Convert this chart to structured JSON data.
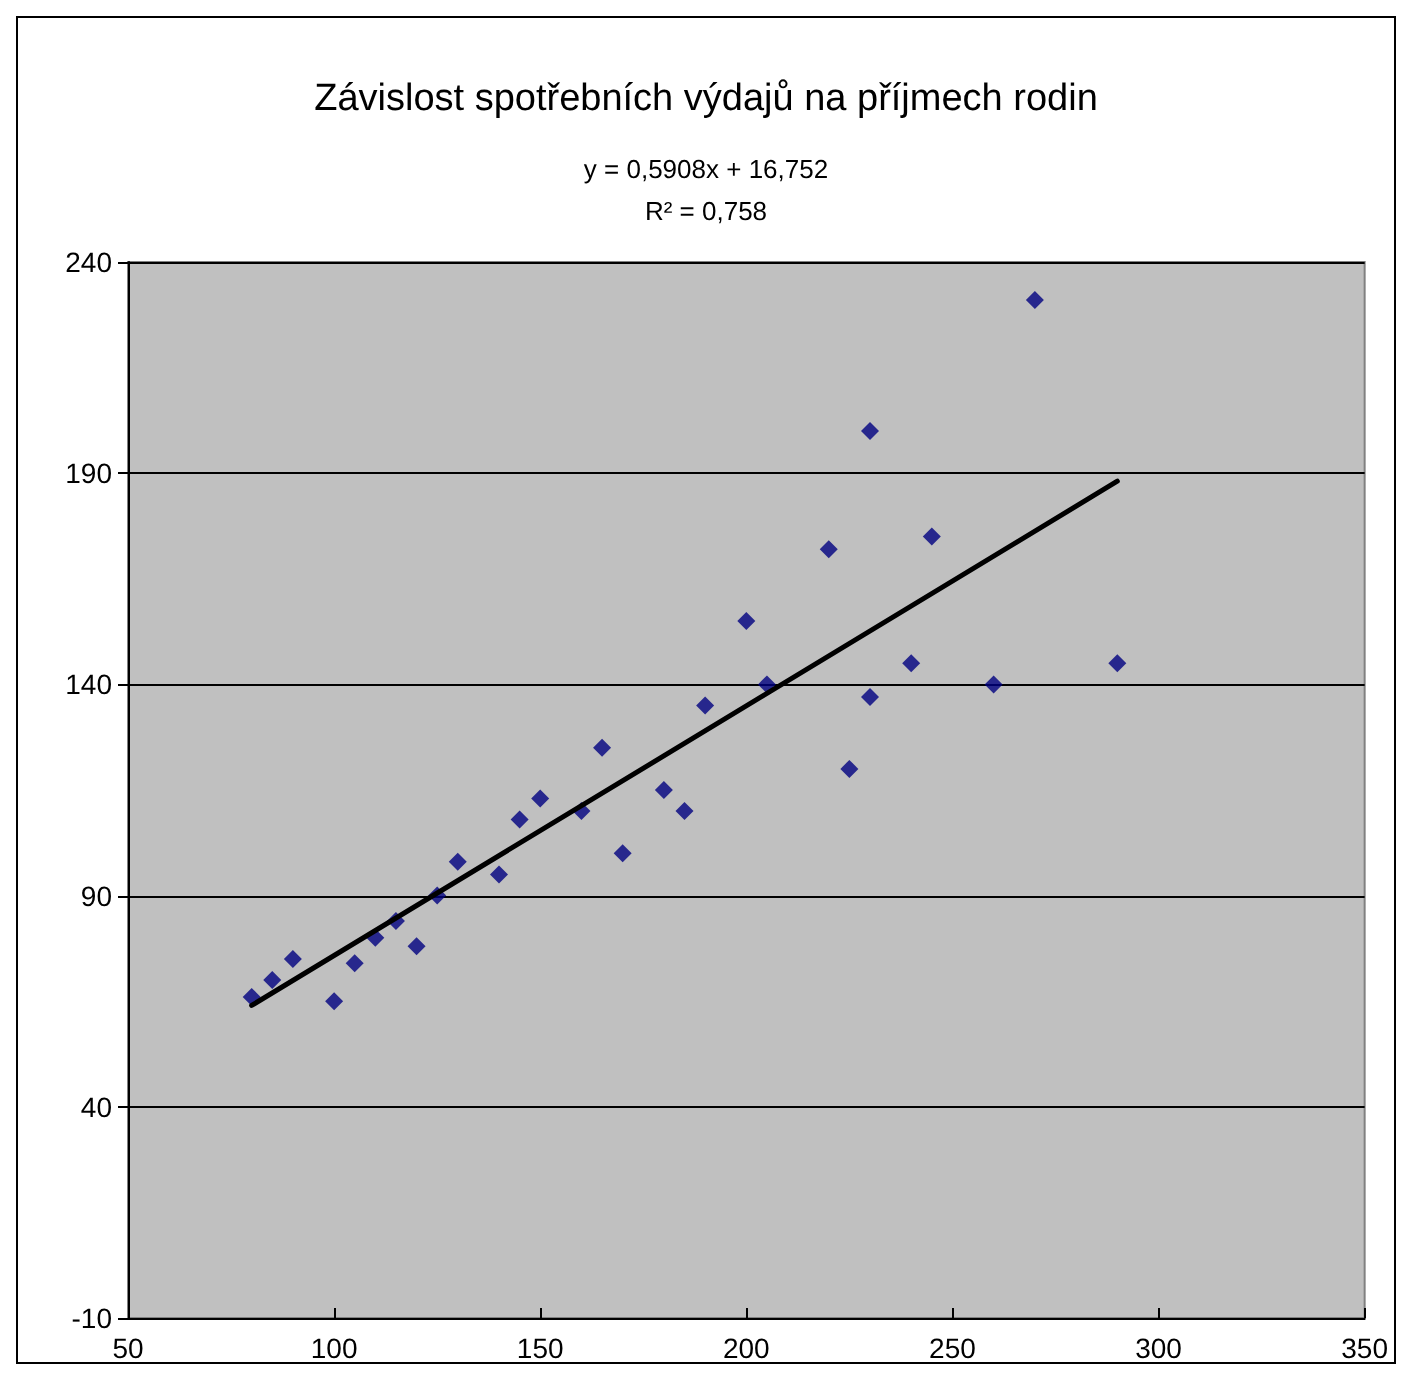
{
  "chart_data": {
    "type": "scatter",
    "title": "Závislost spotřebních výdajů na příjmech rodin",
    "annotations": [
      "y = 0,5908x + 16,752",
      "R² = 0,758"
    ],
    "x": [
      80,
      85,
      90,
      100,
      105,
      110,
      115,
      120,
      125,
      130,
      140,
      145,
      150,
      160,
      165,
      170,
      180,
      185,
      190,
      200,
      205,
      220,
      225,
      230,
      230,
      240,
      245,
      260,
      270,
      290
    ],
    "series": [
      {
        "color": "#000080",
        "values": [
          66,
          70,
          75,
          65,
          74,
          80,
          84,
          78,
          90,
          98,
          95,
          108,
          113,
          110,
          125,
          100,
          115,
          110,
          135,
          155,
          140,
          172,
          120,
          200,
          137,
          145,
          175,
          140,
          231,
          145
        ]
      },
      {
        "type": "line",
        "color": "#000000",
        "x": [
          80,
          290
        ],
        "values": [
          64.0,
          188.1
        ],
        "marker": "none"
      }
    ],
    "marker": "diamond",
    "xlim": [
      50,
      350
    ],
    "xticks": [
      50,
      100,
      150,
      200,
      250,
      300,
      350
    ],
    "ylim": [
      -10,
      240
    ],
    "yticks": [
      -10,
      40,
      90,
      140,
      190,
      240
    ],
    "grid": "y"
  }
}
